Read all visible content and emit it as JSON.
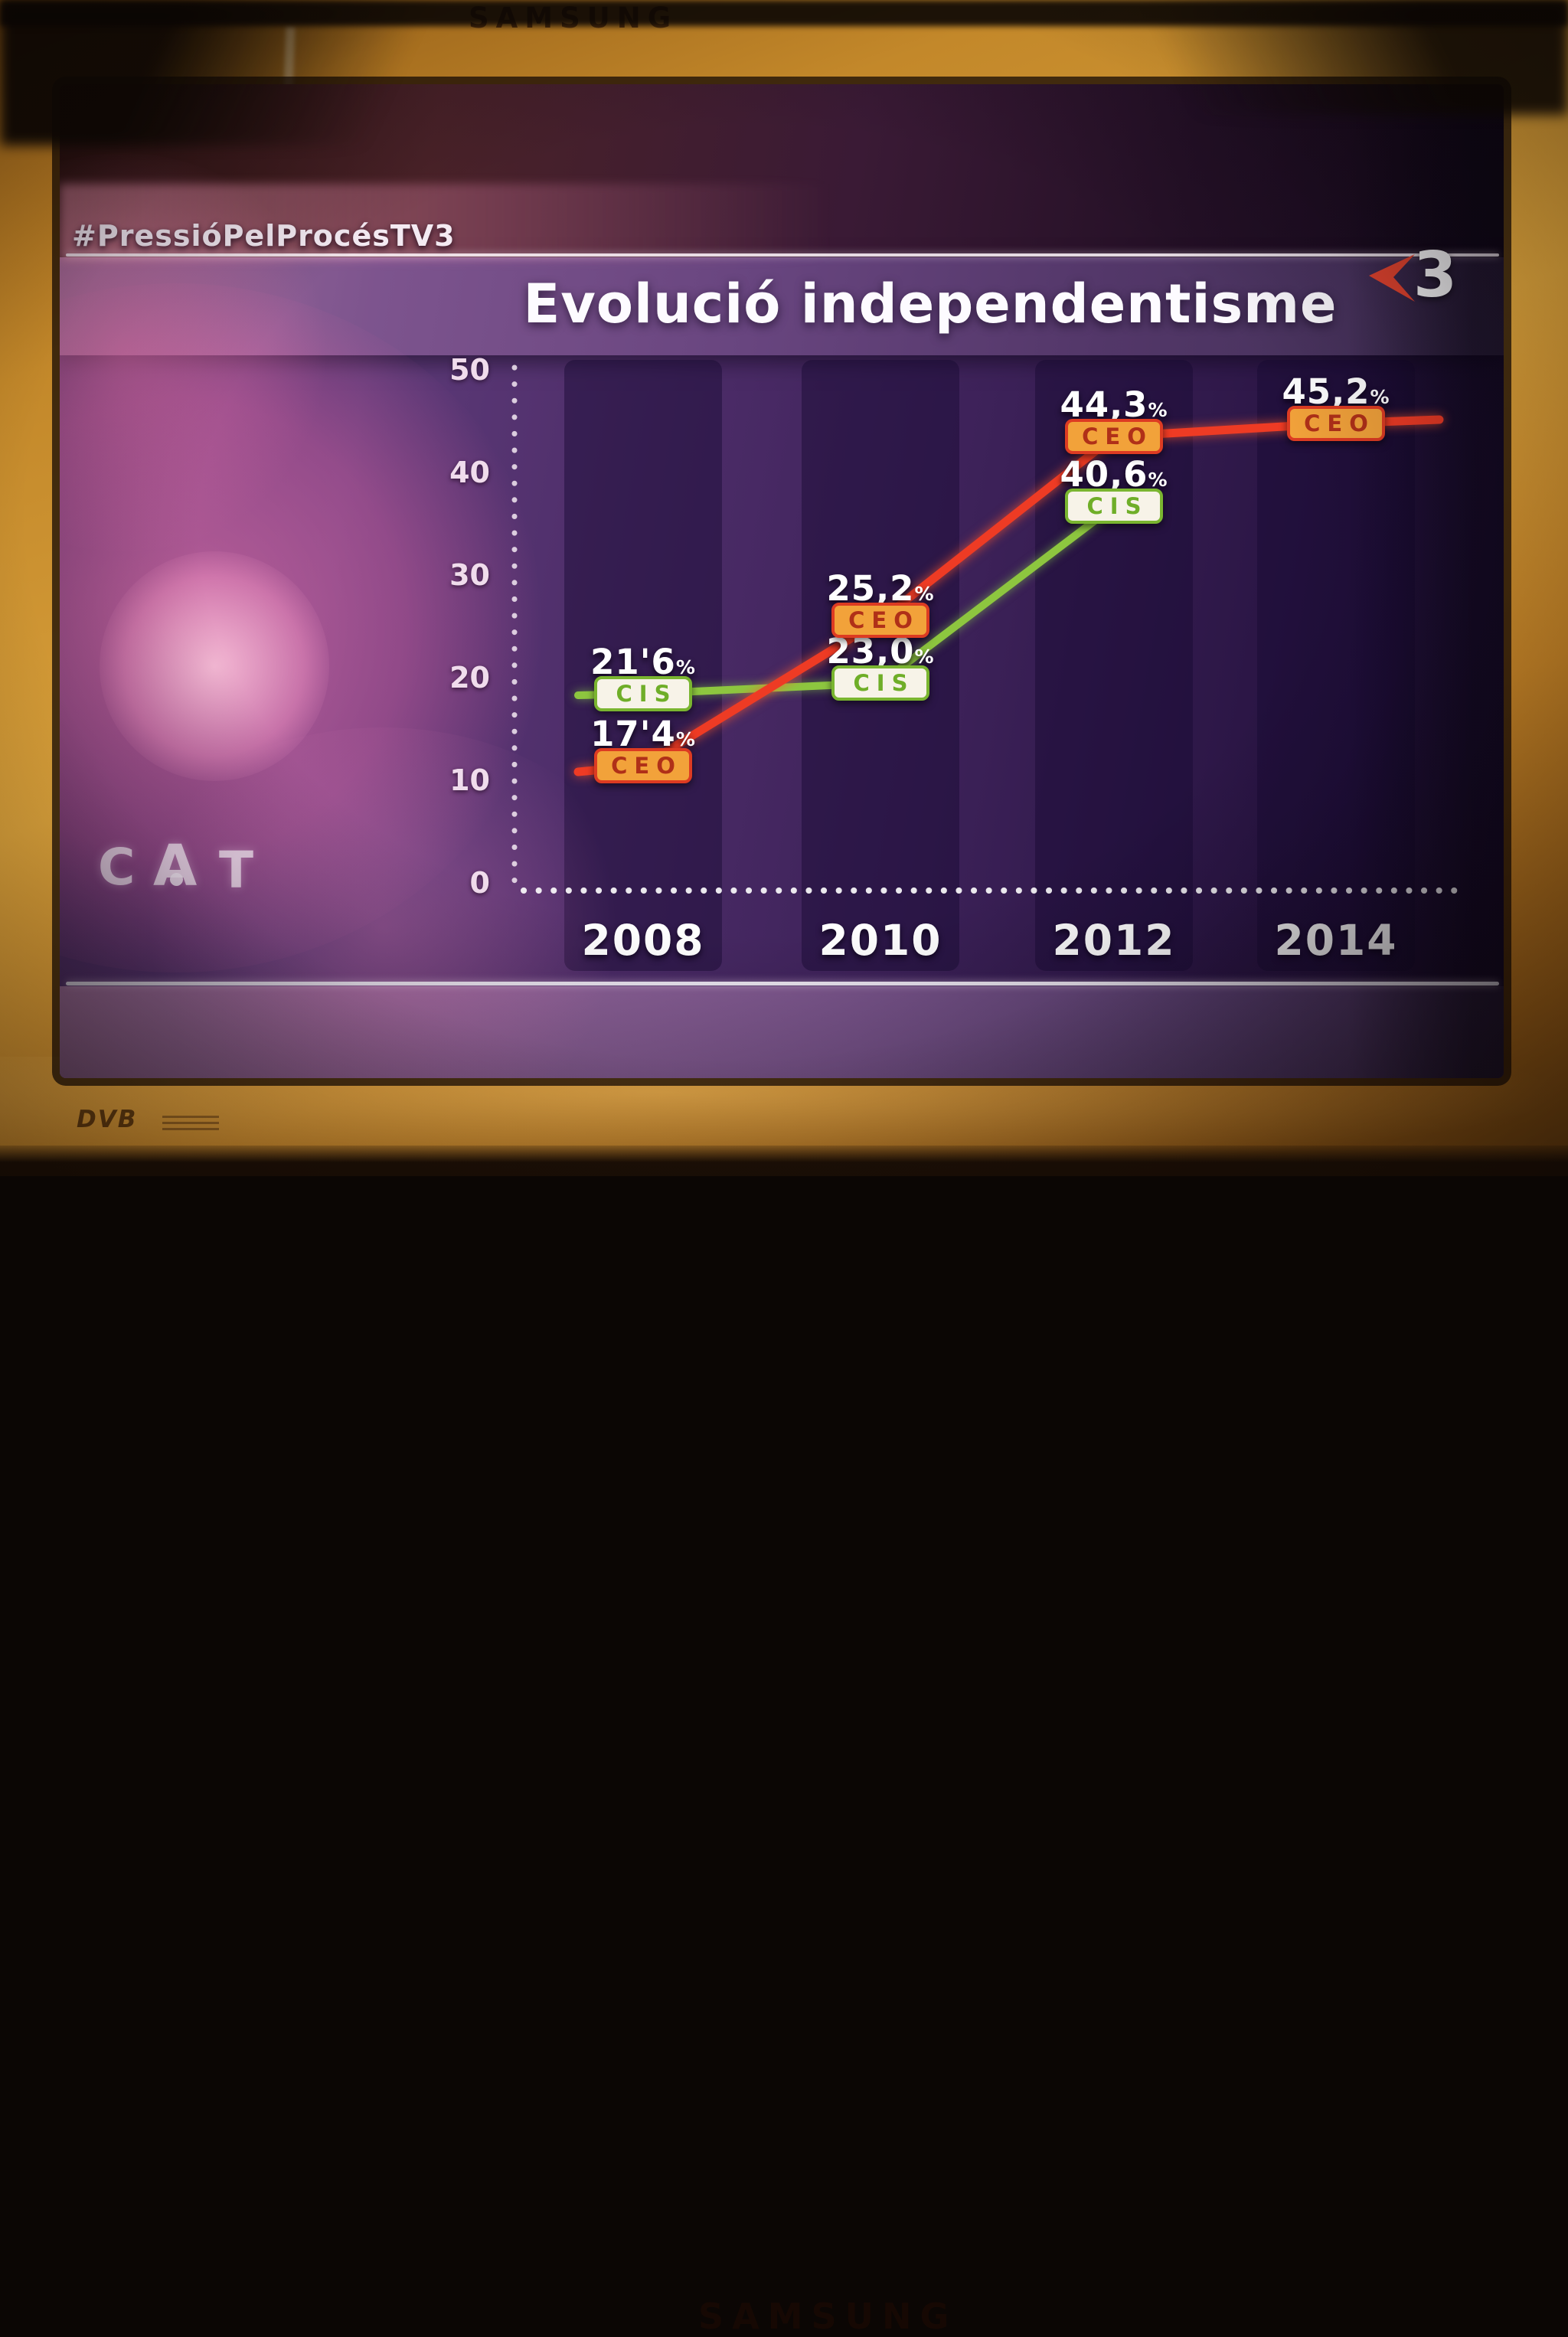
{
  "monitor": {
    "brand_top": "SAMSUNG",
    "brand_bottom": "SAMSUNG",
    "dvb_badge": "DVB"
  },
  "broadcast": {
    "hashtag": "#PressióPelProcésTV3",
    "channel_number": "3",
    "channel_logo_color": "#e8452e",
    "watermark_letters": [
      "C",
      "A",
      "T"
    ]
  },
  "chart_data": {
    "type": "line",
    "title": "Evolució independentisme",
    "categories": [
      "2008",
      "2010",
      "2012",
      "2014"
    ],
    "unit": "%",
    "ylim": [
      0,
      50
    ],
    "yticks": [
      "0",
      "10",
      "20",
      "30",
      "40",
      "50"
    ],
    "grid": false,
    "legend_position": "badges-on-points",
    "series": [
      {
        "name": "CEO",
        "color": "#ee3b24",
        "values": [
          17.4,
          25.2,
          44.3,
          45.2
        ],
        "value_labels": [
          "17'4",
          "25,2",
          "44,3",
          "45,2"
        ]
      },
      {
        "name": "CIS",
        "color": "#8dc63f",
        "values": [
          21.6,
          23.0,
          40.6
        ],
        "value_labels": [
          "21'6",
          "23,0",
          "40,6"
        ]
      }
    ]
  }
}
